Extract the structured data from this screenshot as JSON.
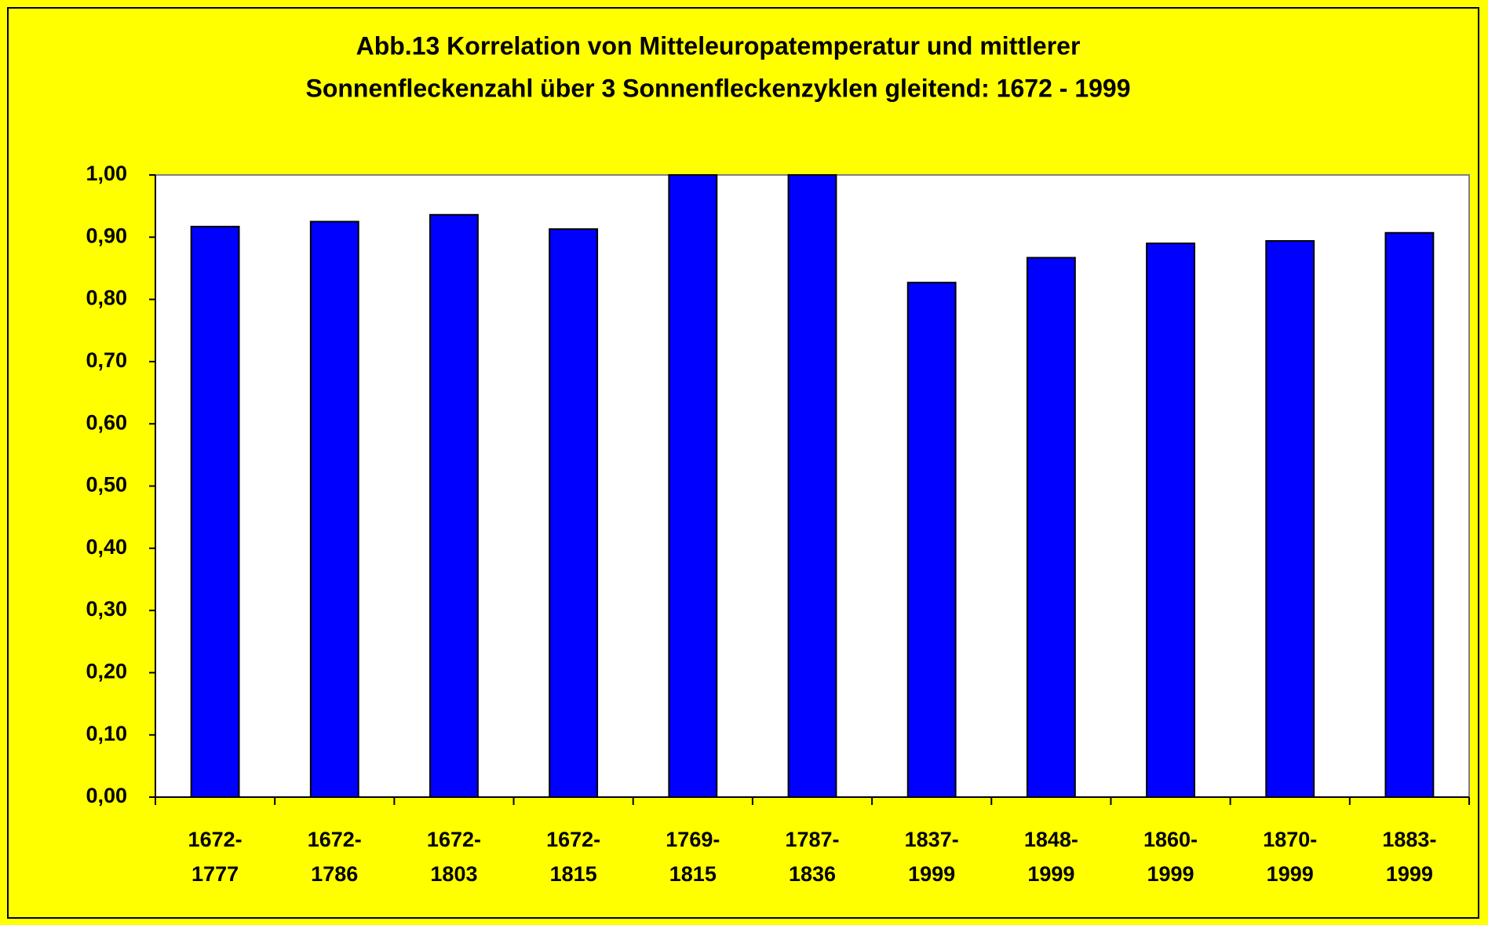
{
  "chart_data": {
    "type": "bar",
    "title": [
      "Abb.13  Korrelation von Mitteleuropatemperatur und mittlerer",
      "Sonnenfleckenzahl über 3 Sonnenfleckenzyklen gleitend: 1672 - 1999"
    ],
    "categories": [
      "1672-\n1777",
      "1672-\n1786",
      "1672-\n1803",
      "1672-\n1815",
      "1769-\n1815",
      "1787-\n1836",
      "1837-\n1999",
      "1848-\n1999",
      "1860-\n1999",
      "1870-\n1999",
      "1883-\n1999"
    ],
    "values": [
      0.917,
      0.925,
      0.936,
      0.913,
      1.0,
      1.0,
      0.827,
      0.867,
      0.89,
      0.894,
      0.907
    ],
    "color": "#0000ff",
    "ylim": [
      0,
      1
    ],
    "yticks": [
      {
        "value": 0,
        "label": "0,00"
      },
      {
        "value": 0.1,
        "label": "0,10"
      },
      {
        "value": 0.2,
        "label": "0,20"
      },
      {
        "value": 0.3,
        "label": "0,30"
      },
      {
        "value": 0.4,
        "label": "0,40"
      },
      {
        "value": 0.5,
        "label": "0,50"
      },
      {
        "value": 0.6,
        "label": "0,60"
      },
      {
        "value": 0.7,
        "label": "0,70"
      },
      {
        "value": 0.8,
        "label": "0,80"
      },
      {
        "value": 0.9,
        "label": "0,90"
      },
      {
        "value": 1,
        "label": "1,00"
      }
    ],
    "grid": false
  }
}
